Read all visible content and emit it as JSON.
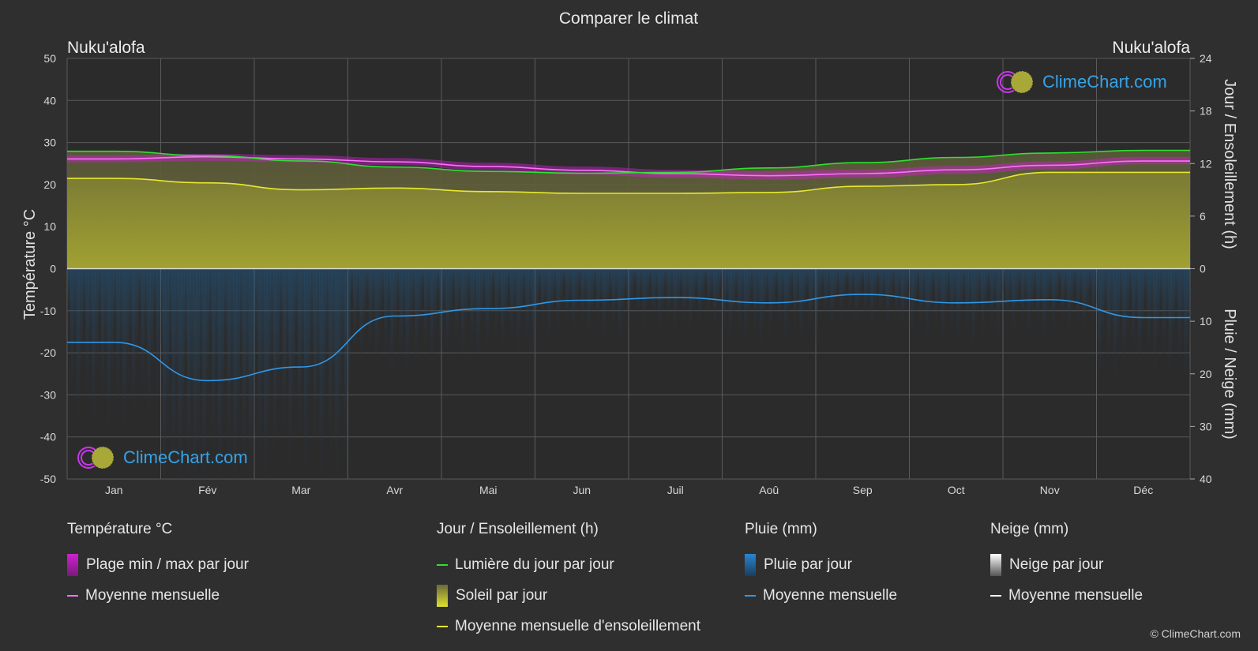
{
  "page": {
    "background": "#2f2f2f",
    "copyright": "© ClimeChart.com"
  },
  "logo": {
    "text": "ClimeChart.com"
  },
  "chart_data": {
    "type": "area",
    "title": "Comparer le climat",
    "location_left": "Nuku'alofa",
    "location_right": "Nuku'alofa",
    "categories": [
      "Jan",
      "Fév",
      "Mar",
      "Avr",
      "Mai",
      "Jun",
      "Juil",
      "Aoû",
      "Sep",
      "Oct",
      "Nov",
      "Déc"
    ],
    "axes": {
      "left": {
        "label": "Température °C",
        "range": [
          -50,
          50
        ],
        "ticks": [
          50,
          40,
          30,
          20,
          10,
          0,
          -10,
          -20,
          -30,
          -40,
          -50
        ]
      },
      "right_top": {
        "label": "Jour / Ensoleillement (h)",
        "range": [
          0,
          24
        ],
        "ticks": [
          24,
          18,
          12,
          6,
          0
        ]
      },
      "right_bottom": {
        "label": "Pluie / Neige (mm)",
        "range": [
          0,
          40
        ],
        "ticks": [
          10,
          20,
          30,
          40
        ]
      }
    },
    "grid": true,
    "series": {
      "temp_max_daily_c": [
        27.0,
        27.3,
        27.0,
        26.3,
        25.2,
        24.3,
        23.5,
        23.2,
        23.6,
        24.4,
        25.5,
        26.6
      ],
      "temp_min_daily_c": [
        25.3,
        25.6,
        25.3,
        24.6,
        23.4,
        22.4,
        21.6,
        21.2,
        21.6,
        22.5,
        23.6,
        24.8
      ],
      "temp_mean_monthly_c": [
        26.1,
        26.6,
        26.1,
        25.4,
        24.3,
        23.4,
        22.6,
        22.1,
        22.6,
        23.5,
        24.6,
        25.6
      ],
      "daylight_hours": [
        13.4,
        12.9,
        12.3,
        11.6,
        11.1,
        10.9,
        11.0,
        11.5,
        12.1,
        12.7,
        13.2,
        13.5
      ],
      "sunshine_hours_monthly_mean": [
        10.3,
        9.8,
        9.0,
        9.2,
        8.8,
        8.6,
        8.6,
        8.7,
        9.4,
        9.6,
        11.0,
        11.0
      ],
      "rain_mm_monthly_mean": [
        14.0,
        21.3,
        18.7,
        9.0,
        7.6,
        6.0,
        5.5,
        6.5,
        4.9,
        6.5,
        5.9,
        9.3
      ],
      "snow_mm_monthly_mean": [
        0,
        0,
        0,
        0,
        0,
        0,
        0,
        0,
        0,
        0,
        0,
        0
      ]
    },
    "colors": {
      "temp_range": "#d020d0",
      "temp_mean": "#ff70ff",
      "daylight": "#30e030",
      "sunshine_fill": "#9e9e30",
      "sunshine_mean": "#e8e830",
      "rain_fill": "#1f6ea8",
      "rain_mean": "#2f98e8",
      "snow_mean": "#ffffff"
    }
  },
  "legend": {
    "groups": [
      {
        "title": "Température °C",
        "items": [
          {
            "label": "Plage min / max par jour",
            "kind": "box",
            "color": "#d020d0"
          },
          {
            "label": "Moyenne mensuelle",
            "kind": "line",
            "color": "#ff70ff"
          }
        ]
      },
      {
        "title": "Jour / Ensoleillement (h)",
        "items": [
          {
            "label": "Lumière du jour par jour",
            "kind": "line",
            "color": "#30e030"
          },
          {
            "label": "Soleil par jour",
            "kind": "box",
            "color": "#c8c830"
          },
          {
            "label": "Moyenne mensuelle d'ensoleillement",
            "kind": "line",
            "color": "#e8e830"
          }
        ]
      },
      {
        "title": "Pluie (mm)",
        "items": [
          {
            "label": "Pluie par jour",
            "kind": "box",
            "color": "#2a85d0"
          },
          {
            "label": "Moyenne mensuelle",
            "kind": "line",
            "color": "#2f98e8"
          }
        ]
      },
      {
        "title": "Neige (mm)",
        "items": [
          {
            "label": "Neige par jour",
            "kind": "box",
            "color": "#dddddd"
          },
          {
            "label": "Moyenne mensuelle",
            "kind": "line",
            "color": "#ffffff"
          }
        ]
      }
    ]
  }
}
